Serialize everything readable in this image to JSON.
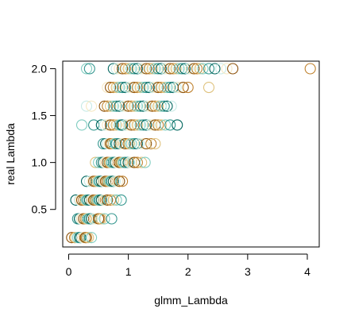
{
  "chart_data": {
    "type": "scatter",
    "title": "",
    "xlabel": "glmm_Lambda",
    "ylabel": "real Lambda",
    "xlim": [
      -0.1,
      4.2
    ],
    "ylim": [
      0.1,
      2.08
    ],
    "x_ticks": [
      0,
      1,
      2,
      3,
      4
    ],
    "x_tick_labels": [
      "0",
      "1",
      "2",
      "3",
      "4"
    ],
    "y_ticks": [
      0.5,
      1.0,
      1.5,
      2.0
    ],
    "y_tick_labels": [
      "0.5",
      "1.0",
      "1.5",
      "2.0"
    ],
    "grid": false,
    "legend": "none",
    "marker": "open-circle",
    "palette": [
      "#8c510a",
      "#bf812d",
      "#dfc27d",
      "#80cdc1",
      "#35978f",
      "#01665e",
      "#c7eae5",
      "#f6e8c3"
    ],
    "points": [
      {
        "y": 0.2,
        "x": [
          0.05,
          0.1,
          0.12,
          0.15,
          0.18,
          0.2,
          0.22,
          0.25,
          0.28,
          0.3,
          0.33,
          0.38
        ]
      },
      {
        "y": 0.4,
        "x": [
          0.15,
          0.18,
          0.2,
          0.22,
          0.25,
          0.28,
          0.3,
          0.33,
          0.35,
          0.38,
          0.4,
          0.45,
          0.5,
          0.52,
          0.55,
          0.6,
          0.72
        ]
      },
      {
        "y": 0.6,
        "x": [
          0.12,
          0.18,
          0.2,
          0.22,
          0.25,
          0.28,
          0.3,
          0.32,
          0.35,
          0.38,
          0.4,
          0.42,
          0.45,
          0.48,
          0.5,
          0.52,
          0.55,
          0.58,
          0.6,
          0.65,
          0.7,
          0.75,
          0.8,
          0.88
        ]
      },
      {
        "y": 0.8,
        "x": [
          0.3,
          0.35,
          0.4,
          0.42,
          0.45,
          0.48,
          0.5,
          0.52,
          0.55,
          0.58,
          0.6,
          0.62,
          0.65,
          0.68,
          0.7,
          0.72,
          0.75,
          0.78,
          0.82,
          0.85,
          0.9
        ]
      },
      {
        "y": 1.0,
        "x": [
          0.45,
          0.5,
          0.55,
          0.58,
          0.6,
          0.62,
          0.65,
          0.68,
          0.7,
          0.72,
          0.75,
          0.78,
          0.8,
          0.82,
          0.85,
          0.88,
          0.9,
          0.92,
          0.95,
          1.0,
          1.02,
          1.05,
          1.1,
          1.15,
          1.22,
          1.28
        ]
      },
      {
        "y": 1.2,
        "x": [
          0.58,
          0.62,
          0.65,
          0.68,
          0.7,
          0.72,
          0.75,
          0.78,
          0.8,
          0.85,
          0.88,
          0.9,
          0.95,
          1.0,
          1.02,
          1.05,
          1.1,
          1.15,
          1.18,
          1.25,
          1.3,
          1.38,
          1.45
        ]
      },
      {
        "y": 1.4,
        "x": [
          0.22,
          0.42,
          0.55,
          0.6,
          0.65,
          0.7,
          0.75,
          0.8,
          0.85,
          0.88,
          0.9,
          0.95,
          1.0,
          1.05,
          1.1,
          1.15,
          1.2,
          1.25,
          1.3,
          1.35,
          1.4,
          1.45,
          1.5,
          1.55,
          1.62,
          1.7,
          1.82
        ]
      },
      {
        "y": 1.6,
        "x": [
          0.3,
          0.38,
          0.6,
          0.65,
          0.7,
          0.75,
          0.8,
          0.85,
          0.9,
          0.95,
          1.0,
          1.05,
          1.1,
          1.15,
          1.2,
          1.25,
          1.3,
          1.35,
          1.4,
          1.45,
          1.5,
          1.55,
          1.6,
          1.65,
          1.72
        ]
      },
      {
        "y": 1.8,
        "x": [
          0.65,
          0.7,
          0.75,
          0.8,
          0.85,
          0.9,
          0.95,
          1.0,
          1.05,
          1.1,
          1.15,
          1.2,
          1.25,
          1.3,
          1.35,
          1.4,
          1.45,
          1.5,
          1.55,
          1.6,
          1.65,
          1.7,
          1.75,
          1.8,
          1.85,
          1.92,
          2.0,
          2.35
        ]
      },
      {
        "y": 2.0,
        "x": [
          0.3,
          0.35,
          0.75,
          0.8,
          0.85,
          0.9,
          0.95,
          1.0,
          1.05,
          1.1,
          1.15,
          1.2,
          1.25,
          1.3,
          1.35,
          1.4,
          1.45,
          1.5,
          1.55,
          1.6,
          1.65,
          1.7,
          1.75,
          1.8,
          1.85,
          1.9,
          1.95,
          2.0,
          2.05,
          2.1,
          2.15,
          2.2,
          2.25,
          2.35,
          2.45,
          2.55,
          2.65,
          2.75,
          4.05
        ]
      }
    ]
  }
}
